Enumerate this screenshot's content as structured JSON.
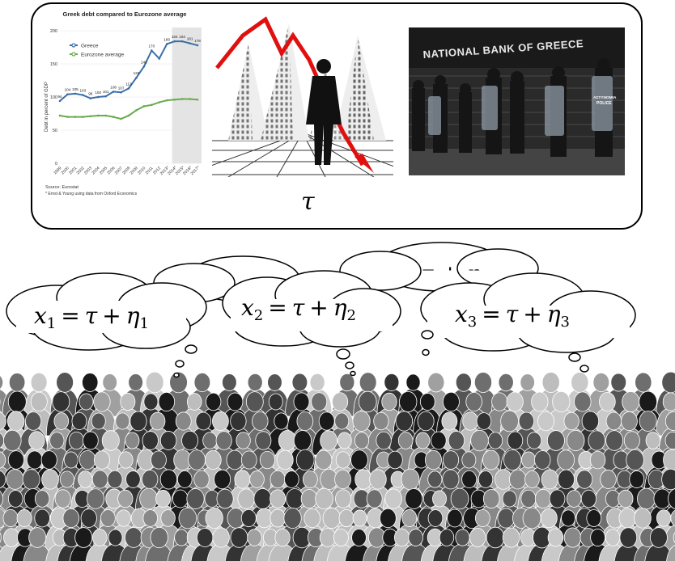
{
  "panel": {
    "symbol": "τ"
  },
  "chart_data": {
    "type": "line",
    "title": "Greek debt compared to Eurozone average",
    "ylabel": "Debt in percent of GDP",
    "xlabel": "",
    "ylim": [
      0,
      200
    ],
    "yticks": [
      "0",
      "50",
      "100",
      "150",
      "200"
    ],
    "categories": [
      "1999",
      "2000",
      "2001",
      "2002",
      "2003",
      "2004",
      "2005",
      "2006",
      "2007",
      "2008",
      "2009",
      "2010",
      "2011",
      "2012",
      "2013*",
      "2014*",
      "2015*",
      "2016*",
      "2017*"
    ],
    "series": [
      {
        "name": "Greece",
        "color": "#3b6ea8",
        "values": [
          94,
          104,
          105,
          103,
          98,
          100,
          101,
          108,
          107,
          113,
          129,
          146,
          170,
          158,
          180,
          184,
          184,
          181,
          178
        ],
        "labels": [
          "94",
          "104",
          "105",
          "103",
          "98",
          "100",
          "101",
          "108",
          "107",
          "113",
          "129",
          "146",
          "170",
          "",
          "180",
          "184",
          "184",
          "181",
          "178"
        ]
      },
      {
        "name": "Eurozone average",
        "color": "#6aab4d",
        "values": [
          72,
          70,
          70,
          70,
          71,
          72,
          72,
          70,
          67,
          72,
          80,
          86,
          88,
          92,
          95,
          96,
          97,
          97,
          96
        ]
      }
    ],
    "legend_position": "top-left",
    "forecast_shading_from": "2014*",
    "source": "Source: Eurostat",
    "footnote": "* Ernst & Young using data from Oxford Economics"
  },
  "photo": {
    "sign": "NATIONAL BANK OF GREECE",
    "shield_text_1": "ΑΣΤΥΝΟΜΙΑ",
    "shield_text_2": "POLICE"
  },
  "bubbles": [
    {
      "var": "x",
      "sub": "1",
      "eq": "=",
      "tau": "τ",
      "plus": "+",
      "eta": "η",
      "eta_sub": "1"
    },
    {
      "var": "x",
      "sub": "2",
      "eq": "=",
      "tau": "τ",
      "plus": "+",
      "eta": "η",
      "eta_sub": "2"
    },
    {
      "var": "x",
      "sub": "3",
      "eq": "=",
      "tau": "τ",
      "plus": "+",
      "eta": "η",
      "eta_sub": "3"
    },
    {
      "partial": "τ + η"
    }
  ],
  "colors": {
    "greece": "#3b6ea8",
    "eurozone": "#6aab4d",
    "arrow": "#e01010"
  }
}
